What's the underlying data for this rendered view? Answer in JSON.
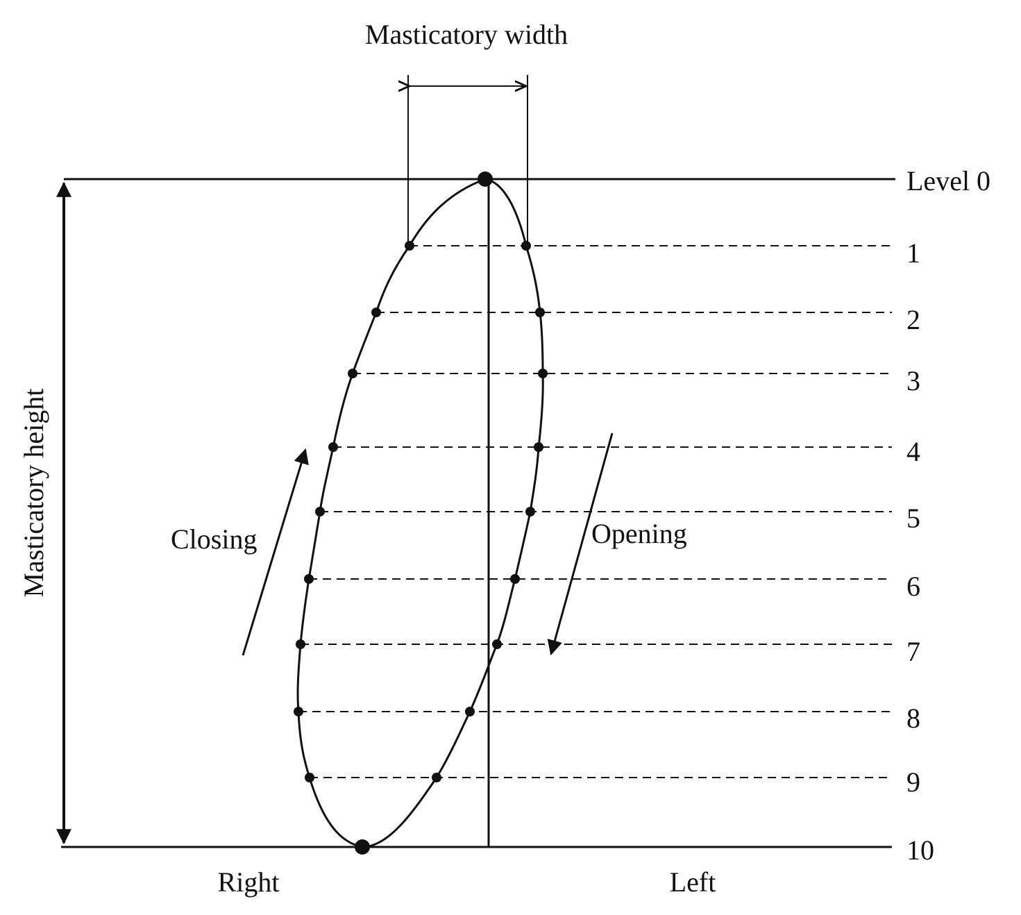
{
  "diagram": {
    "width_label": "Masticatory width",
    "height_label": "Masticatory height",
    "closing_label": "Closing",
    "opening_label": "Opening",
    "right_label": "Right",
    "left_label": "Left",
    "levels": [
      "Level 0",
      "1",
      "2",
      "3",
      "4",
      "5",
      "6",
      "7",
      "8",
      "9",
      "10"
    ],
    "colors": {
      "ink": "#111111",
      "background": "#ffffff"
    }
  }
}
